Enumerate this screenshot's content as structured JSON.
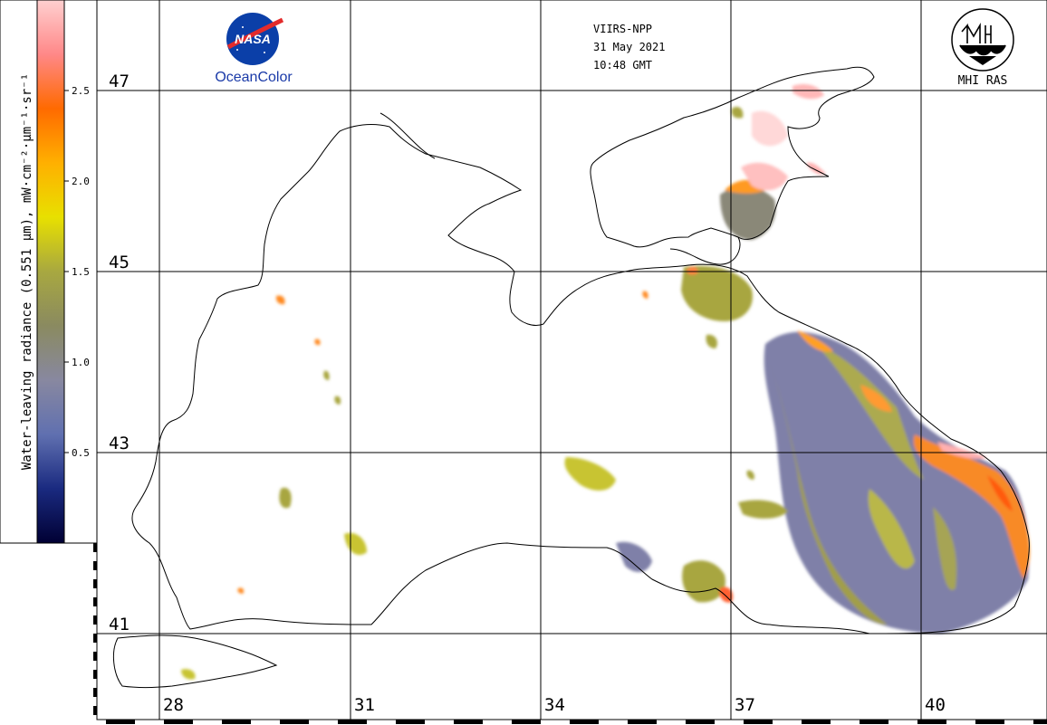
{
  "header": {
    "satellite": "VIIRS-NPP",
    "date": "31 May 2021",
    "time": "10:48 GMT"
  },
  "logos": {
    "nasa_text": "NASA",
    "oceancolor_text": "OceanColor",
    "mhi_text": "MHI RAS"
  },
  "colorbar": {
    "label": "Water-leaving radiance (0.551 µm), mW·cm⁻²·µm⁻¹·sr⁻¹",
    "ticks": [
      "2.5",
      "2.0",
      "1.5",
      "1.0",
      "0.5"
    ],
    "tick_values": [
      2.5,
      2.0,
      1.5,
      1.0,
      0.5
    ],
    "range": [
      0.0,
      3.0
    ],
    "stops": [
      "#000033",
      "#1a2a80",
      "#6070b0",
      "#8888a0",
      "#8a8a60",
      "#a8a840",
      "#e8e000",
      "#ffb000",
      "#ff6a00",
      "#ff8888",
      "#ffd0d0"
    ]
  },
  "latitudes": [
    "47",
    "45",
    "43",
    "41"
  ],
  "longitudes": [
    "28",
    "31",
    "34",
    "37",
    "40"
  ],
  "colors": {
    "gridline": "#000000",
    "coast": "#000000",
    "land": "#ffffff"
  }
}
